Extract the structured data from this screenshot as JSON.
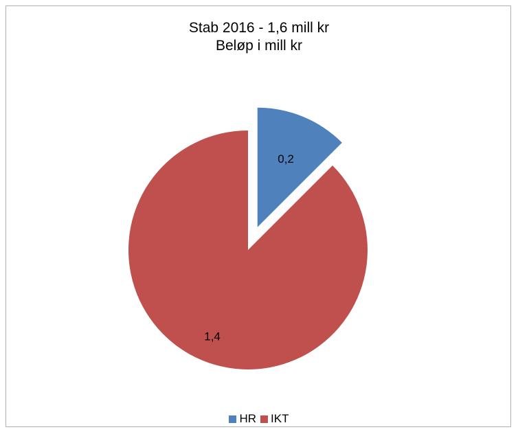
{
  "chart_data": {
    "type": "pie",
    "title": "Stab 2016 - 1,6 mill kr",
    "subtitle": "Beløp i mill kr",
    "categories": [
      "HR",
      "IKT"
    ],
    "values": [
      0.2,
      1.4
    ],
    "data_labels": [
      "0,2",
      "1,4"
    ],
    "colors": [
      "#4f81bd",
      "#c0504d"
    ],
    "exploded": "HR",
    "legend_position": "bottom"
  }
}
